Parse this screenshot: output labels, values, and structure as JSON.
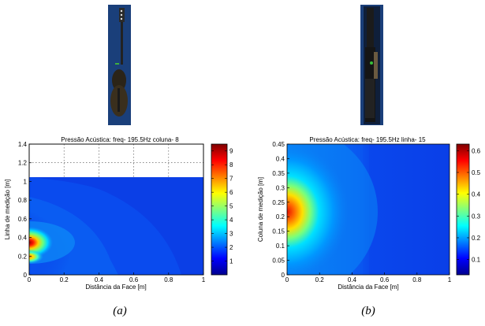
{
  "chart_data": [
    {
      "type": "heatmap",
      "title": "Pressão Acústica: freq- 195.5Hz coluna- 8",
      "xlabel": "Distância da Face [m]",
      "ylabel": "Linha de medição [m]",
      "xlim": [
        0,
        1
      ],
      "ylim": [
        0,
        1.4
      ],
      "x_ticks": [
        "0",
        "0.2",
        "0.4",
        "0.6",
        "0.8",
        "1"
      ],
      "y_ticks": [
        "0",
        "0.2",
        "0.4",
        "0.6",
        "0.8",
        "1",
        "1.2",
        "1.4"
      ],
      "data_extent_y": [
        0,
        1.05
      ],
      "grid": true,
      "colorbar": {
        "min": 0,
        "max": 9.5,
        "ticks": [
          "1",
          "2",
          "3",
          "4",
          "5",
          "6",
          "7",
          "8",
          "9"
        ]
      },
      "hotspots": [
        {
          "x": 0.0,
          "y": 0.35,
          "value": 9.2
        },
        {
          "x": 0.0,
          "y": 0.19,
          "value": 6.5
        }
      ],
      "caption": "(a)"
    },
    {
      "type": "heatmap",
      "title": "Pressão Acústica: freq- 195.5Hz linha- 15",
      "xlabel": "Distância da Face [m]",
      "ylabel": "Coluna de medição [m]",
      "xlim": [
        0,
        1
      ],
      "ylim": [
        0,
        0.45
      ],
      "x_ticks": [
        "0",
        "0.2",
        "0.4",
        "0.6",
        "0.8",
        "1"
      ],
      "y_ticks": [
        "0",
        "0.05",
        "0.1",
        "0.15",
        "0.2",
        "0.25",
        "0.3",
        "0.35",
        "0.4",
        "0.45"
      ],
      "grid": false,
      "colorbar": {
        "min": 0.03,
        "max": 0.63,
        "ticks": [
          "0.1",
          "0.2",
          "0.3",
          "0.4",
          "0.5",
          "0.6"
        ]
      },
      "hotspots": [
        {
          "x": 0.0,
          "y": 0.2,
          "value": 0.62
        }
      ],
      "caption": "(b)"
    }
  ]
}
